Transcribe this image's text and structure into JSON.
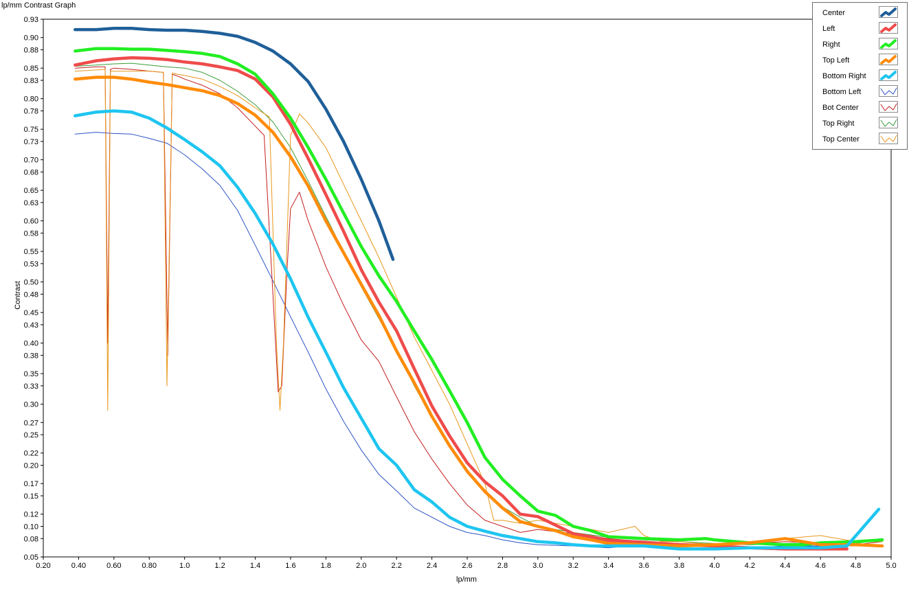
{
  "chart_data": {
    "type": "line",
    "title": "lp/mm Contrast Graph",
    "xlabel": "lp/mm",
    "ylabel": "Contrast",
    "xlim": [
      0.2,
      5.0
    ],
    "ylim": [
      0.05,
      0.93
    ],
    "grid": false,
    "legend_position": "top-right",
    "x_ticks": [
      "0.20",
      "0.40",
      "0.60",
      "0.80",
      "1.0",
      "1.2",
      "1.4",
      "1.6",
      "1.8",
      "2.0",
      "2.2",
      "2.4",
      "2.6",
      "2.8",
      "3.0",
      "3.2",
      "3.4",
      "3.6",
      "3.8",
      "4.0",
      "4.2",
      "4.4",
      "4.6",
      "4.8",
      "5.0"
    ],
    "y_ticks": [
      "0.93",
      "0.90",
      "0.88",
      "0.85",
      "0.83",
      "0.80",
      "0.78",
      "0.75",
      "0.73",
      "0.70",
      "0.68",
      "0.65",
      "0.63",
      "0.60",
      "0.58",
      "0.55",
      "0.53",
      "0.50",
      "0.48",
      "0.45",
      "0.43",
      "0.40",
      "0.38",
      "0.35",
      "0.33",
      "0.30",
      "0.27",
      "0.25",
      "0.22",
      "0.20",
      "0.17",
      "0.15",
      "0.12",
      "0.10",
      "0.08",
      "0.05"
    ],
    "series": [
      {
        "name": "Center",
        "color": "#1f5f99",
        "thick": true,
        "x": [
          0.38,
          0.5,
          0.6,
          0.7,
          0.8,
          0.9,
          1.0,
          1.1,
          1.2,
          1.3,
          1.4,
          1.5,
          1.6,
          1.7,
          1.8,
          1.9,
          2.0,
          2.1,
          2.18
        ],
        "y": [
          0.913,
          0.913,
          0.915,
          0.915,
          0.913,
          0.912,
          0.912,
          0.91,
          0.907,
          0.902,
          0.892,
          0.878,
          0.857,
          0.828,
          0.783,
          0.73,
          0.668,
          0.6,
          0.537
        ]
      },
      {
        "name": "Left",
        "color": "#ef4b4b",
        "thick": true,
        "x": [
          0.38,
          0.5,
          0.6,
          0.7,
          0.8,
          0.9,
          1.0,
          1.1,
          1.2,
          1.3,
          1.4,
          1.5,
          1.6,
          1.7,
          1.8,
          1.9,
          2.0,
          2.1,
          2.2,
          2.3,
          2.4,
          2.5,
          2.6,
          2.7,
          2.8,
          2.9,
          3.0,
          3.1,
          3.2,
          3.3,
          3.4,
          3.6,
          3.8,
          4.0,
          4.2,
          4.4,
          4.6,
          4.75
        ],
        "y": [
          0.855,
          0.862,
          0.865,
          0.867,
          0.866,
          0.864,
          0.86,
          0.857,
          0.852,
          0.846,
          0.832,
          0.803,
          0.758,
          0.702,
          0.643,
          0.583,
          0.52,
          0.467,
          0.42,
          0.358,
          0.297,
          0.248,
          0.204,
          0.173,
          0.15,
          0.12,
          0.116,
          0.102,
          0.088,
          0.083,
          0.077,
          0.074,
          0.07,
          0.068,
          0.065,
          0.063,
          0.063,
          0.063
        ]
      },
      {
        "name": "Right",
        "color": "#22ee22",
        "thick": true,
        "x": [
          0.38,
          0.5,
          0.6,
          0.7,
          0.8,
          0.9,
          1.0,
          1.1,
          1.2,
          1.3,
          1.4,
          1.5,
          1.6,
          1.7,
          1.8,
          1.9,
          2.0,
          2.1,
          2.2,
          2.3,
          2.4,
          2.5,
          2.6,
          2.7,
          2.8,
          2.9,
          3.0,
          3.1,
          3.2,
          3.3,
          3.4,
          3.6,
          3.8,
          3.95,
          4.0,
          4.2,
          4.4,
          4.5,
          4.6,
          4.8,
          4.95
        ],
        "y": [
          0.878,
          0.882,
          0.882,
          0.881,
          0.881,
          0.879,
          0.877,
          0.874,
          0.869,
          0.857,
          0.84,
          0.808,
          0.768,
          0.72,
          0.668,
          0.613,
          0.558,
          0.51,
          0.468,
          0.42,
          0.373,
          0.322,
          0.27,
          0.213,
          0.177,
          0.15,
          0.125,
          0.118,
          0.1,
          0.093,
          0.083,
          0.08,
          0.078,
          0.08,
          0.078,
          0.073,
          0.07,
          0.07,
          0.073,
          0.075,
          0.078
        ]
      },
      {
        "name": "Top Left",
        "color": "#ff8c0a",
        "thick": true,
        "x": [
          0.38,
          0.5,
          0.6,
          0.7,
          0.8,
          0.9,
          1.0,
          1.1,
          1.2,
          1.3,
          1.4,
          1.5,
          1.6,
          1.7,
          1.8,
          1.9,
          2.0,
          2.1,
          2.2,
          2.3,
          2.4,
          2.5,
          2.6,
          2.7,
          2.8,
          2.9,
          3.0,
          3.1,
          3.2,
          3.3,
          3.4,
          3.6,
          3.8,
          4.0,
          4.2,
          4.4,
          4.6,
          4.8,
          4.95
        ],
        "y": [
          0.832,
          0.835,
          0.835,
          0.832,
          0.827,
          0.823,
          0.818,
          0.813,
          0.805,
          0.792,
          0.773,
          0.745,
          0.705,
          0.657,
          0.6,
          0.548,
          0.496,
          0.445,
          0.387,
          0.335,
          0.28,
          0.232,
          0.19,
          0.157,
          0.13,
          0.108,
          0.1,
          0.093,
          0.083,
          0.078,
          0.072,
          0.07,
          0.068,
          0.07,
          0.073,
          0.08,
          0.07,
          0.07,
          0.068
        ]
      },
      {
        "name": "Bottom Right",
        "color": "#1ec5f0",
        "thick": true,
        "x": [
          0.38,
          0.5,
          0.6,
          0.7,
          0.8,
          0.9,
          1.0,
          1.1,
          1.2,
          1.3,
          1.4,
          1.5,
          1.6,
          1.7,
          1.8,
          1.9,
          2.0,
          2.1,
          2.2,
          2.3,
          2.4,
          2.5,
          2.6,
          2.7,
          2.8,
          2.9,
          3.0,
          3.1,
          3.2,
          3.3,
          3.4,
          3.6,
          3.8,
          4.0,
          4.2,
          4.4,
          4.6,
          4.75,
          4.93
        ],
        "y": [
          0.772,
          0.778,
          0.78,
          0.778,
          0.768,
          0.752,
          0.733,
          0.713,
          0.69,
          0.655,
          0.612,
          0.562,
          0.505,
          0.442,
          0.385,
          0.327,
          0.277,
          0.227,
          0.2,
          0.16,
          0.14,
          0.115,
          0.1,
          0.092,
          0.085,
          0.08,
          0.075,
          0.073,
          0.07,
          0.068,
          0.068,
          0.068,
          0.063,
          0.063,
          0.065,
          0.065,
          0.065,
          0.068,
          0.128
        ]
      },
      {
        "name": "Bottom Left",
        "color": "#2a52c4",
        "thick": false,
        "x": [
          0.38,
          0.5,
          0.6,
          0.7,
          0.8,
          0.9,
          1.0,
          1.1,
          1.2,
          1.3,
          1.4,
          1.5,
          1.6,
          1.7,
          1.8,
          1.9,
          2.0,
          2.1,
          2.2,
          2.3,
          2.4,
          2.5,
          2.6,
          2.7,
          2.8,
          2.9,
          3.0,
          3.2,
          3.4,
          3.6,
          3.8,
          4.0,
          4.2,
          4.4,
          4.6,
          4.8,
          4.95
        ],
        "y": [
          0.742,
          0.745,
          0.743,
          0.742,
          0.735,
          0.727,
          0.708,
          0.685,
          0.658,
          0.617,
          0.56,
          0.502,
          0.443,
          0.385,
          0.325,
          0.272,
          0.225,
          0.185,
          0.158,
          0.13,
          0.115,
          0.1,
          0.09,
          0.085,
          0.078,
          0.073,
          0.07,
          0.068,
          0.065,
          0.07,
          0.063,
          0.063,
          0.065,
          0.068,
          0.068,
          0.075,
          0.08
        ]
      },
      {
        "name": "Bot Center",
        "color": "#c41d1d",
        "thick": false,
        "x": [
          0.38,
          0.5,
          0.55,
          0.565,
          0.58,
          0.6,
          0.7,
          0.8,
          0.88,
          0.905,
          0.93,
          0.96,
          1.0,
          1.1,
          1.2,
          1.3,
          1.4,
          1.45,
          1.5,
          1.53,
          1.55,
          1.58,
          1.6,
          1.65,
          1.7,
          1.8,
          1.9,
          2.0,
          2.1,
          2.2,
          2.3,
          2.4,
          2.5,
          2.6,
          2.7,
          2.8,
          2.9,
          3.0,
          3.2,
          3.4,
          3.6,
          3.8,
          4.0,
          4.2,
          4.4,
          4.6,
          4.8,
          4.95
        ],
        "y": [
          0.85,
          0.852,
          0.852,
          0.4,
          0.848,
          0.85,
          0.848,
          0.845,
          0.843,
          0.38,
          0.84,
          0.837,
          0.832,
          0.822,
          0.808,
          0.785,
          0.755,
          0.74,
          0.48,
          0.32,
          0.33,
          0.52,
          0.62,
          0.647,
          0.6,
          0.525,
          0.462,
          0.405,
          0.37,
          0.312,
          0.255,
          0.21,
          0.17,
          0.135,
          0.11,
          0.1,
          0.09,
          0.095,
          0.088,
          0.08,
          0.075,
          0.072,
          0.07,
          0.072,
          0.075,
          0.073,
          0.07,
          0.075
        ]
      },
      {
        "name": "Top Right",
        "color": "#3a9d3a",
        "thick": false,
        "x": [
          0.38,
          0.5,
          0.6,
          0.7,
          0.8,
          0.9,
          1.0,
          1.1,
          1.2,
          1.3,
          1.4,
          1.5,
          1.6,
          1.7,
          1.8,
          1.9,
          2.0,
          2.1,
          2.2,
          2.3,
          2.4,
          2.5,
          2.6,
          2.7,
          2.8,
          2.9,
          3.0,
          3.2,
          3.4,
          3.6,
          3.8,
          4.0,
          4.2,
          4.4,
          4.6,
          4.8,
          4.95
        ],
        "y": [
          0.853,
          0.855,
          0.857,
          0.858,
          0.855,
          0.852,
          0.85,
          0.843,
          0.83,
          0.812,
          0.79,
          0.762,
          0.72,
          0.665,
          0.607,
          0.55,
          0.492,
          0.44,
          0.387,
          0.33,
          0.278,
          0.23,
          0.19,
          0.158,
          0.132,
          0.115,
          0.1,
          0.09,
          0.082,
          0.078,
          0.075,
          0.072,
          0.07,
          0.072,
          0.073,
          0.072,
          0.078
        ]
      },
      {
        "name": "Top Center",
        "color": "#e8961a",
        "thick": false,
        "x": [
          0.38,
          0.5,
          0.55,
          0.565,
          0.58,
          0.6,
          0.7,
          0.8,
          0.88,
          0.9,
          0.93,
          0.96,
          1.0,
          1.1,
          1.2,
          1.3,
          1.4,
          1.48,
          1.52,
          1.54,
          1.56,
          1.6,
          1.65,
          1.7,
          1.8,
          1.9,
          2.0,
          2.1,
          2.2,
          2.3,
          2.4,
          2.5,
          2.6,
          2.7,
          2.75,
          2.8,
          2.9,
          3.0,
          3.2,
          3.4,
          3.55,
          3.6,
          3.7,
          3.8,
          4.0,
          4.2,
          4.4,
          4.6,
          4.8,
          4.95
        ],
        "y": [
          0.845,
          0.847,
          0.848,
          0.29,
          0.845,
          0.845,
          0.845,
          0.845,
          0.843,
          0.33,
          0.842,
          0.84,
          0.838,
          0.832,
          0.82,
          0.805,
          0.785,
          0.77,
          0.4,
          0.29,
          0.4,
          0.74,
          0.775,
          0.76,
          0.72,
          0.66,
          0.6,
          0.54,
          0.475,
          0.41,
          0.355,
          0.3,
          0.235,
          0.17,
          0.11,
          0.11,
          0.105,
          0.11,
          0.1,
          0.09,
          0.1,
          0.085,
          0.075,
          0.075,
          0.07,
          0.075,
          0.08,
          0.085,
          0.075,
          0.075
        ]
      }
    ]
  }
}
